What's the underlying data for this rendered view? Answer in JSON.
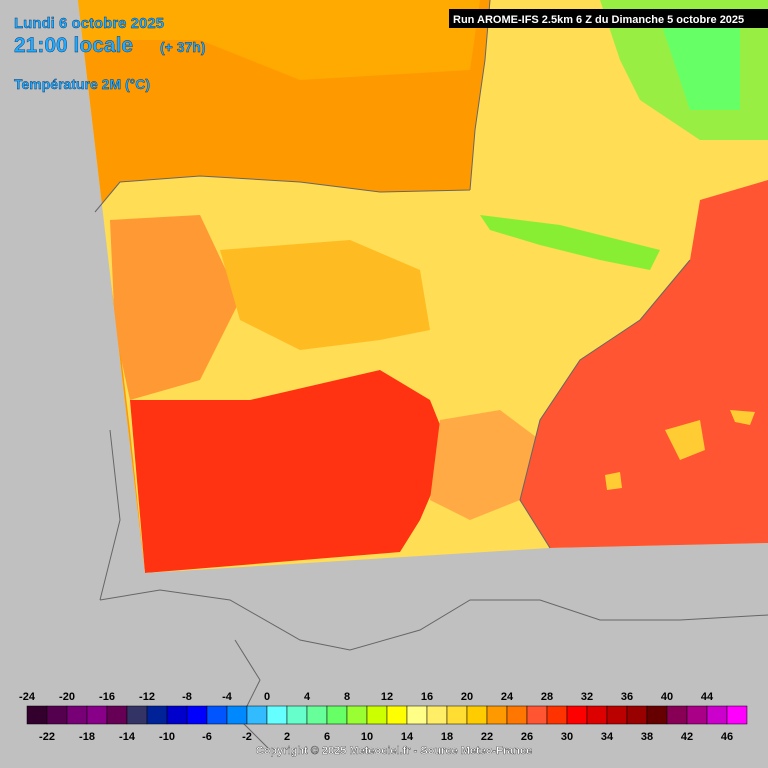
{
  "header": {
    "date": "Lundi 6 octobre 2025",
    "time": "21:00 locale",
    "offset": "(+ 37h)",
    "variable": "Température 2M (°C)",
    "run": "Run AROME-IFS 2.5km 6 Z du Dimanche 5 octobre 2025"
  },
  "legend": {
    "values": [
      -24,
      -22,
      -20,
      -18,
      -16,
      -14,
      -12,
      -10,
      -8,
      -6,
      -4,
      -2,
      0,
      2,
      4,
      6,
      8,
      10,
      12,
      14,
      16,
      18,
      20,
      22,
      24,
      26,
      28,
      30,
      32,
      34,
      36,
      38,
      40,
      42,
      44,
      46
    ],
    "colors": [
      "#33002e",
      "#55004f",
      "#770077",
      "#880088",
      "#660055",
      "#333366",
      "#002299",
      "#0000cc",
      "#0000ff",
      "#0055ff",
      "#0088ff",
      "#33bbff",
      "#66ffff",
      "#66ffcc",
      "#66ff99",
      "#66ff66",
      "#99ff33",
      "#ccff00",
      "#ffff00",
      "#ffff88",
      "#ffee66",
      "#ffdd33",
      "#ffcc00",
      "#ff9900",
      "#ff7700",
      "#ff5533",
      "#ff3300",
      "#ff0000",
      "#dd0000",
      "#bb0000",
      "#990000",
      "#660000",
      "#880055",
      "#aa0088",
      "#cc00cc",
      "#ff00ff"
    ]
  },
  "footer": {
    "copyright": "Copyright © 2025 Meteociel.fr - Source Meteo-France"
  }
}
